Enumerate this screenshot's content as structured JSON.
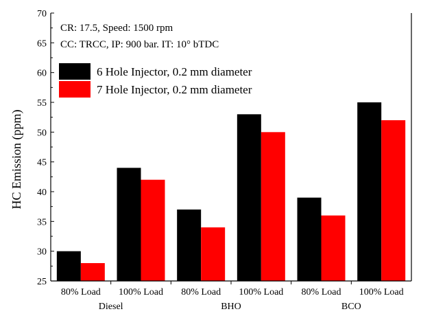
{
  "chart_data": {
    "type": "bar",
    "title": "",
    "ylabel": "HC Emission (ppm)",
    "xlabel": "",
    "ylim": [
      25,
      70
    ],
    "y_ticks": [
      25,
      30,
      35,
      40,
      45,
      50,
      55,
      60,
      65,
      70
    ],
    "categories": [
      "80% Load",
      "100% Load",
      "80% Load",
      "100% Load",
      "80% Load",
      "100% Load"
    ],
    "groups": [
      {
        "label": "Diesel",
        "span": [
          0,
          1
        ]
      },
      {
        "label": "BHO",
        "span": [
          2,
          3
        ]
      },
      {
        "label": "BCO",
        "span": [
          4,
          5
        ]
      }
    ],
    "series": [
      {
        "name": "6 Hole Injector, 0.2 mm diameter",
        "color": "#000000",
        "values": [
          30,
          44,
          37,
          53,
          39,
          55
        ]
      },
      {
        "name": "7 Hole Injector, 0.2 mm diameter",
        "color": "#ff0000",
        "values": [
          28,
          42,
          34,
          50,
          36,
          52
        ]
      }
    ],
    "annotations": [
      "CR: 17.5, Speed: 1500 rpm",
      "CC: TRCC, IP: 900 bar. IT: 10° bTDC"
    ],
    "legend_position": "top-left",
    "grid": false
  }
}
